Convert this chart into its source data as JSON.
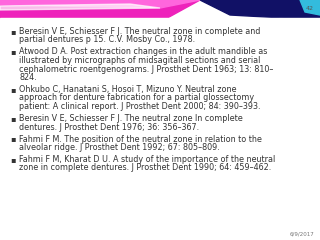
{
  "page_number": "42",
  "date": "6/9/2017",
  "bullet_char": "▪",
  "text_color": "#333333",
  "font_size": 5.8,
  "background_color": "#ffffff",
  "bullets_raw": [
    [
      "Beresin V E, Schiesser F J. The neutral zone in complete and",
      "partial dentures p 15. C.V. Mosby Co., 1978."
    ],
    [
      "Atwood D A. Post extraction changes in the adult mandible as",
      "illustrated by micrographs of midsagitall sections and serial",
      "cephalometric roentgenograms. J Prosthet Dent 1963; 13: 810–",
      "824."
    ],
    [
      "Ohkubo C, Hanatani S, Hosoi T, Mizuno Y. Neutral zone",
      "approach for denture fabrication for a partial glossectomy",
      "patient: A clinical report. J Prosthet Dent 2000; 84: 390–393."
    ],
    [
      "Beresin V E, Schiesser F J. The neutral zone In complete",
      "dentures. J Prosthet Dent 1976; 36: 356–367."
    ],
    [
      "Fahmi F M. The position of the neutral zone in relation to the",
      "alveolar ridge. J Prosthet Dent 1992; 67: 805–809."
    ],
    [
      "Fahmi F M, Kharat D U. A study of the importance of the neutral",
      "zone in complete dentures. J Prosthet Dent 1990; 64: 459–462."
    ]
  ]
}
